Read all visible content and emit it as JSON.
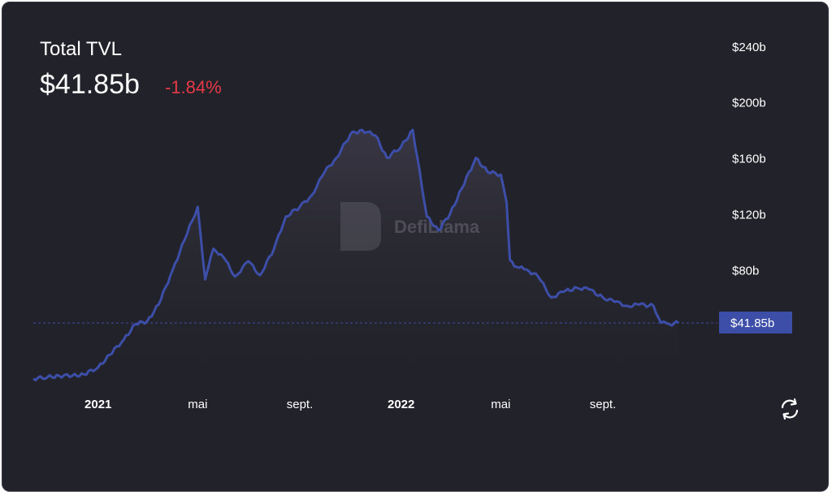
{
  "header": {
    "title": "Total TVL",
    "value": "$41.85b",
    "change": "-1.84%"
  },
  "watermark": "DefiLlama",
  "colors": {
    "background": "#22232a",
    "line": "#3d4ea8",
    "negative": "#e63946",
    "text": "#ffffff",
    "current_label_bg": "#3d4ea8"
  },
  "reset_icon": "refresh-icon",
  "chart_data": {
    "type": "area",
    "title": "Total TVL",
    "ylabel": "",
    "xlabel": "",
    "x_ticks": [
      "2021",
      "mai",
      "sept.",
      "2022",
      "mai",
      "sept."
    ],
    "x_tick_dates": [
      "2021-01-01",
      "2021-05-01",
      "2021-09-01",
      "2022-01-01",
      "2022-05-01",
      "2022-09-01"
    ],
    "y_ticks": [
      "$80b",
      "$120b",
      "$160b",
      "$200b",
      "$240b"
    ],
    "y_tick_values": [
      80,
      120,
      160,
      200,
      240
    ],
    "ylim": [
      0,
      255
    ],
    "current_value": 41.85,
    "current_label": "$41.85b",
    "unit": "billion USD",
    "series": [
      {
        "name": "Total TVL",
        "x": [
          "2020-10-15",
          "2020-11-01",
          "2020-11-15",
          "2020-12-01",
          "2020-12-15",
          "2021-01-01",
          "2021-01-15",
          "2021-02-01",
          "2021-02-15",
          "2021-03-01",
          "2021-03-15",
          "2021-04-01",
          "2021-04-15",
          "2021-05-01",
          "2021-05-10",
          "2021-05-20",
          "2021-06-01",
          "2021-06-15",
          "2021-07-01",
          "2021-07-15",
          "2021-08-01",
          "2021-08-15",
          "2021-09-01",
          "2021-09-15",
          "2021-10-01",
          "2021-10-15",
          "2021-11-01",
          "2021-11-15",
          "2021-12-01",
          "2021-12-15",
          "2022-01-01",
          "2022-01-15",
          "2022-02-01",
          "2022-02-15",
          "2022-03-01",
          "2022-03-15",
          "2022-04-01",
          "2022-04-15",
          "2022-05-01",
          "2022-05-08",
          "2022-05-12",
          "2022-05-20",
          "2022-06-01",
          "2022-06-15",
          "2022-07-01",
          "2022-07-15",
          "2022-08-01",
          "2022-08-15",
          "2022-09-01",
          "2022-09-15",
          "2022-10-01",
          "2022-10-15",
          "2022-11-01",
          "2022-11-10",
          "2022-11-20",
          "2022-12-01"
        ],
        "y": [
          2,
          3,
          4,
          4,
          5,
          10,
          19,
          30,
          41,
          43,
          55,
          80,
          101,
          125,
          73,
          95,
          89,
          75,
          86,
          76,
          95,
          118,
          125,
          133,
          150,
          160,
          177,
          180,
          176,
          160,
          168,
          180,
          118,
          108,
          120,
          138,
          160,
          150,
          148,
          128,
          87,
          82,
          80,
          75,
          60,
          64,
          67,
          66,
          60,
          57,
          54,
          55,
          54,
          42,
          41,
          42
        ]
      }
    ]
  }
}
